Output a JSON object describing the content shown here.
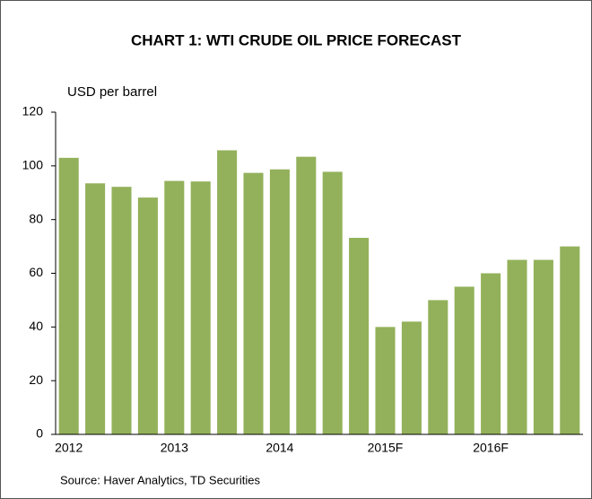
{
  "chart_data": {
    "type": "bar",
    "title": "CHART 1: WTI CRUDE OIL PRICE FORECAST",
    "y_label": "USD per barrel",
    "source": "Source: Haver Analytics, TD Securities",
    "categories": [
      "2012",
      null,
      null,
      null,
      "2013",
      null,
      null,
      null,
      "2014",
      null,
      null,
      null,
      "2015F",
      null,
      null,
      null,
      "2016F",
      null,
      null,
      null
    ],
    "values": [
      103,
      93.5,
      92.2,
      88.2,
      94.4,
      94.2,
      105.8,
      97.4,
      98.7,
      103.4,
      97.8,
      73.2,
      40,
      42,
      50,
      55,
      60,
      65,
      65,
      70
    ],
    "color": "#93b15a",
    "ylim": [
      0,
      120
    ],
    "yticks": [
      0,
      20,
      40,
      60,
      80,
      100,
      120
    ],
    "grid": false
  }
}
